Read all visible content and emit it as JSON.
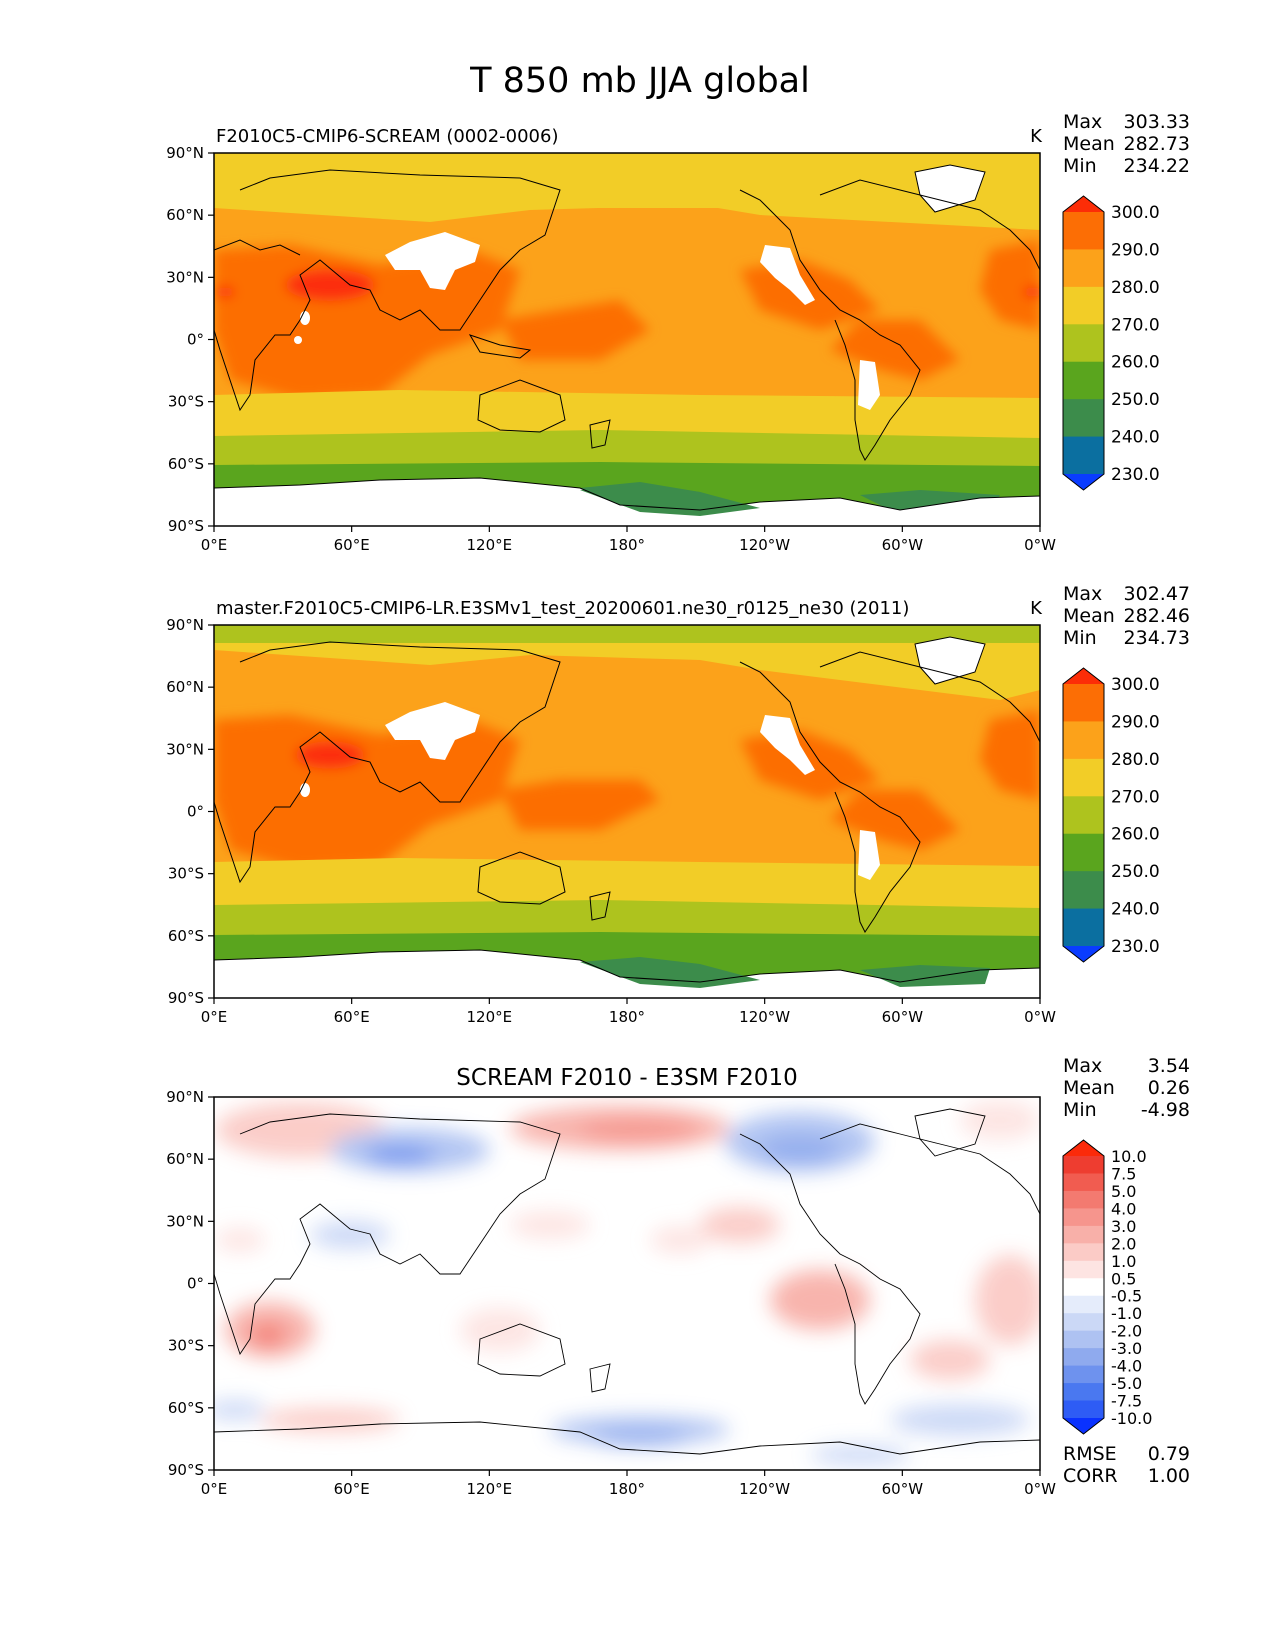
{
  "figure": {
    "title": "T 850 mb JJA global"
  },
  "chart_data": [
    {
      "type": "heatmap",
      "title": "F2010C5-CMIP6-SCREAM (0002-0006)",
      "units": "K",
      "stats": {
        "labels": [
          "Max",
          "Mean",
          "Min"
        ],
        "values": [
          "303.33",
          "282.73",
          "234.22"
        ]
      },
      "x_ticks": [
        "0°E",
        "60°E",
        "120°E",
        "180°",
        "120°W",
        "60°W",
        "0°W"
      ],
      "y_ticks": [
        "90°N",
        "60°N",
        "30°N",
        "0°",
        "30°S",
        "60°S",
        "90°S"
      ],
      "xlim": [
        0,
        360
      ],
      "ylim": [
        -90,
        90
      ],
      "colorbar": {
        "levels": [
          "230.0",
          "240.0",
          "250.0",
          "260.0",
          "270.0",
          "280.0",
          "290.0",
          "300.0"
        ],
        "colors": [
          "#0a3cff",
          "#0b6fa0",
          "#3c8c4b",
          "#5aa51e",
          "#aec31e",
          "#f2cd27",
          "#fca21a",
          "#fc6e05",
          "#fc2d07"
        ]
      },
      "colors": {
        "ocean_line": "#000000",
        "missing": "#ffffff"
      }
    },
    {
      "type": "heatmap",
      "title": "master.F2010C5-CMIP6-LR.E3SMv1_test_20200601.ne30_r0125_ne30 (2011)",
      "units": "K",
      "stats": {
        "labels": [
          "Max",
          "Mean",
          "Min"
        ],
        "values": [
          "302.47",
          "282.46",
          "234.73"
        ]
      },
      "x_ticks": [
        "0°E",
        "60°E",
        "120°E",
        "180°",
        "120°W",
        "60°W",
        "0°W"
      ],
      "y_ticks": [
        "90°N",
        "60°N",
        "30°N",
        "0°",
        "30°S",
        "60°S",
        "90°S"
      ],
      "xlim": [
        0,
        360
      ],
      "ylim": [
        -90,
        90
      ],
      "colorbar": {
        "levels": [
          "230.0",
          "240.0",
          "250.0",
          "260.0",
          "270.0",
          "280.0",
          "290.0",
          "300.0"
        ],
        "colors": [
          "#0a3cff",
          "#0b6fa0",
          "#3c8c4b",
          "#5aa51e",
          "#aec31e",
          "#f2cd27",
          "#fca21a",
          "#fc6e05",
          "#fc2d07"
        ]
      },
      "colors": {
        "ocean_line": "#000000",
        "missing": "#ffffff"
      }
    },
    {
      "type": "heatmap",
      "title": "SCREAM F2010 - E3SM F2010",
      "units": "",
      "stats": {
        "labels": [
          "Max",
          "Mean",
          "Min"
        ],
        "values": [
          "3.54",
          "0.26",
          "-4.98"
        ]
      },
      "extra_stats": {
        "labels": [
          "RMSE",
          "CORR"
        ],
        "values": [
          "0.79",
          "1.00"
        ]
      },
      "x_ticks": [
        "0°E",
        "60°E",
        "120°E",
        "180°",
        "120°W",
        "60°W",
        "0°W"
      ],
      "y_ticks": [
        "90°N",
        "60°N",
        "30°N",
        "0°",
        "30°S",
        "60°S",
        "90°S"
      ],
      "xlim": [
        0,
        360
      ],
      "ylim": [
        -90,
        90
      ],
      "colorbar": {
        "levels": [
          "-10.0",
          "-7.5",
          "-5.0",
          "-4.0",
          "-3.0",
          "-2.0",
          "-1.0",
          "-0.5",
          "0.5",
          "1.0",
          "2.0",
          "3.0",
          "4.0",
          "5.0",
          "7.5",
          "10.0"
        ],
        "colors": [
          "#0a32ff",
          "#2e5cf5",
          "#4a78f0",
          "#6e92ee",
          "#8faaee",
          "#aec2f2",
          "#cbd8f6",
          "#e5ecfb",
          "#ffffff",
          "#fde4e2",
          "#fbcbc6",
          "#f8b0a9",
          "#f6958d",
          "#f37a70",
          "#f15c50",
          "#ee3d30",
          "#fb2a0a"
        ]
      },
      "colors": {
        "ocean_line": "#000000"
      }
    }
  ]
}
